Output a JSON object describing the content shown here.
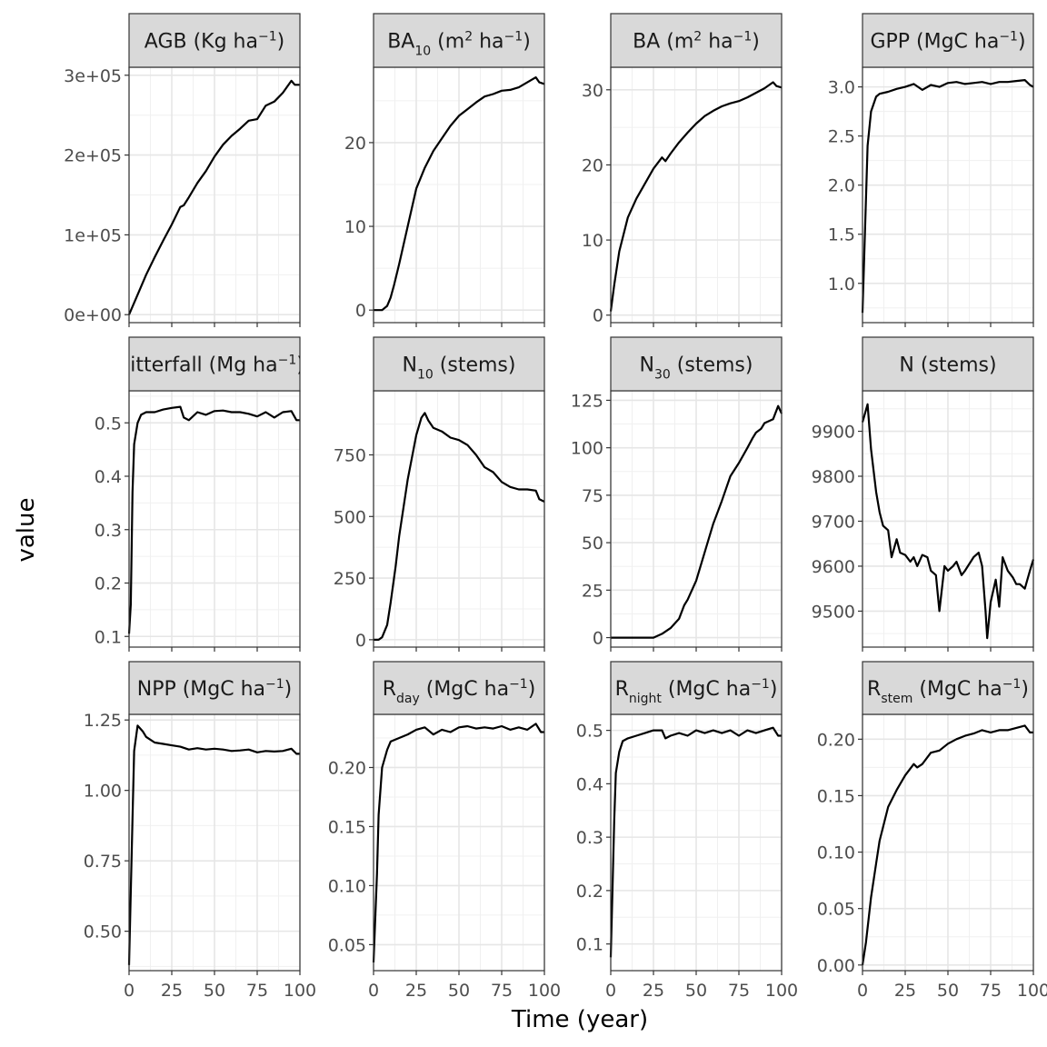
{
  "chart_data": {
    "type": "line",
    "xlabel": "Time (year)",
    "ylabel": "value",
    "xlim": [
      0,
      100
    ],
    "x_ticks": [
      0,
      25,
      50,
      75,
      100
    ],
    "grid": true,
    "line_color": "#000000",
    "strip_color": "#d9d9d9",
    "panels": [
      {
        "title": {
          "base": "AGB (Kg ha",
          "sup": "−1",
          "tail": ")"
        },
        "ylim": [
          -10000,
          310000
        ],
        "y_ticks": [
          0,
          100000,
          200000,
          300000
        ],
        "y_tick_labels": [
          "0e+00",
          "1e+05",
          "2e+05",
          "3e+05"
        ],
        "x": [
          0,
          5,
          10,
          15,
          20,
          25,
          30,
          32,
          35,
          40,
          45,
          50,
          55,
          60,
          65,
          70,
          75,
          80,
          85,
          90,
          95,
          97,
          100
        ],
        "y": [
          0,
          25000,
          50000,
          72000,
          93000,
          113000,
          135000,
          137000,
          147000,
          165000,
          180000,
          198000,
          213000,
          224000,
          233000,
          243000,
          245000,
          262000,
          267000,
          278000,
          293000,
          288000,
          288000
        ]
      },
      {
        "title": {
          "base": "BA",
          "sub": "10",
          "mid": " (m",
          "sup": "2",
          "tail": " ha",
          "sup2": "−1",
          "tail2": ")"
        },
        "ylim": [
          -1.5,
          29
        ],
        "y_ticks": [
          0,
          10,
          20
        ],
        "y_tick_labels": [
          "0",
          "10",
          "20"
        ],
        "x": [
          0,
          5,
          8,
          10,
          12,
          15,
          20,
          25,
          30,
          35,
          40,
          45,
          50,
          55,
          60,
          65,
          70,
          75,
          80,
          85,
          90,
          95,
          97,
          100
        ],
        "y": [
          0,
          0,
          0.5,
          1.5,
          3,
          5.5,
          10,
          14.5,
          17,
          19,
          20.5,
          22,
          23.2,
          24,
          24.8,
          25.5,
          25.8,
          26.2,
          26.3,
          26.6,
          27.2,
          27.8,
          27.2,
          27
        ]
      },
      {
        "title": {
          "base": "BA (m",
          "sup": "2",
          "tail": " ha",
          "sup2": "−1",
          "tail2": ")"
        },
        "ylim": [
          -1,
          33
        ],
        "y_ticks": [
          0,
          10,
          20,
          30
        ],
        "y_tick_labels": [
          "0",
          "10",
          "20",
          "30"
        ],
        "x": [
          0,
          2,
          5,
          10,
          15,
          20,
          25,
          30,
          32,
          35,
          40,
          45,
          50,
          55,
          60,
          65,
          70,
          75,
          80,
          85,
          90,
          95,
          97,
          100
        ],
        "y": [
          0.5,
          4,
          8.5,
          13,
          15.5,
          17.5,
          19.5,
          21,
          20.5,
          21.5,
          23,
          24.3,
          25.5,
          26.5,
          27.2,
          27.8,
          28.2,
          28.5,
          29,
          29.6,
          30.2,
          31,
          30.5,
          30.3
        ]
      },
      {
        "title": {
          "base": "GPP (MgC ha",
          "sup": "−1",
          "tail": ")"
        },
        "ylim": [
          0.6,
          3.2
        ],
        "y_ticks": [
          1.0,
          1.5,
          2.0,
          2.5,
          3.0
        ],
        "y_tick_labels": [
          "1.0",
          "1.5",
          "2.0",
          "2.5",
          "3.0"
        ],
        "x": [
          0,
          3,
          5,
          8,
          10,
          15,
          20,
          25,
          30,
          35,
          40,
          45,
          50,
          55,
          60,
          65,
          70,
          75,
          80,
          85,
          90,
          95,
          98,
          100
        ],
        "y": [
          0.7,
          2.4,
          2.75,
          2.9,
          2.93,
          2.95,
          2.98,
          3.0,
          3.03,
          2.97,
          3.02,
          3.0,
          3.04,
          3.05,
          3.03,
          3.04,
          3.05,
          3.03,
          3.05,
          3.05,
          3.06,
          3.07,
          3.02,
          3.0
        ]
      },
      {
        "title": {
          "base": "litterfall (Mg ha",
          "sup": "−1",
          "tail": ")"
        },
        "ylim": [
          0.08,
          0.56
        ],
        "y_ticks": [
          0.1,
          0.2,
          0.3,
          0.4,
          0.5
        ],
        "y_tick_labels": [
          "0.1",
          "0.2",
          "0.3",
          "0.4",
          "0.5"
        ],
        "x": [
          0,
          1,
          2,
          3,
          5,
          7,
          10,
          15,
          20,
          25,
          30,
          32,
          35,
          40,
          45,
          50,
          55,
          60,
          65,
          70,
          75,
          80,
          85,
          90,
          95,
          98,
          100
        ],
        "y": [
          0.105,
          0.16,
          0.37,
          0.46,
          0.5,
          0.515,
          0.52,
          0.52,
          0.525,
          0.528,
          0.53,
          0.51,
          0.505,
          0.52,
          0.515,
          0.522,
          0.523,
          0.52,
          0.52,
          0.517,
          0.512,
          0.52,
          0.51,
          0.52,
          0.522,
          0.505,
          0.505
        ]
      },
      {
        "title": {
          "base": "N",
          "sub": "10",
          "tail": " (stems)"
        },
        "ylim": [
          -30,
          1010
        ],
        "y_ticks": [
          0,
          250,
          500,
          750
        ],
        "y_tick_labels": [
          "0",
          "250",
          "500",
          "750"
        ],
        "x": [
          0,
          3,
          5,
          8,
          10,
          13,
          15,
          20,
          25,
          28,
          30,
          32,
          35,
          40,
          45,
          50,
          55,
          60,
          65,
          70,
          75,
          80,
          85,
          90,
          95,
          97,
          100
        ],
        "y": [
          0,
          0,
          10,
          60,
          150,
          300,
          420,
          650,
          830,
          900,
          920,
          890,
          860,
          845,
          820,
          810,
          790,
          750,
          700,
          680,
          640,
          620,
          610,
          610,
          605,
          570,
          560
        ]
      },
      {
        "title": {
          "base": "N",
          "sub": "30",
          "tail": " (stems)"
        },
        "ylim": [
          -5,
          130
        ],
        "y_ticks": [
          0,
          25,
          50,
          75,
          100,
          125
        ],
        "y_tick_labels": [
          "0",
          "25",
          "50",
          "75",
          "100",
          "125"
        ],
        "x": [
          0,
          10,
          20,
          25,
          30,
          35,
          40,
          43,
          45,
          50,
          55,
          60,
          65,
          70,
          75,
          80,
          83,
          85,
          88,
          90,
          95,
          98,
          100
        ],
        "y": [
          0,
          0,
          0,
          0,
          2,
          5,
          10,
          17,
          20,
          30,
          45,
          60,
          72,
          85,
          92,
          100,
          105,
          108,
          110,
          113,
          115,
          122,
          118
        ]
      },
      {
        "title": {
          "base": "N (stems)"
        },
        "ylim": [
          9420,
          9990
        ],
        "y_ticks": [
          9500,
          9600,
          9700,
          9800,
          9900
        ],
        "y_tick_labels": [
          "9500",
          "9600",
          "9700",
          "9800",
          "9900"
        ],
        "x": [
          0,
          3,
          5,
          8,
          10,
          12,
          15,
          17,
          20,
          22,
          25,
          28,
          30,
          32,
          35,
          38,
          40,
          43,
          45,
          48,
          50,
          53,
          55,
          58,
          60,
          65,
          68,
          70,
          72,
          73,
          75,
          78,
          80,
          82,
          85,
          88,
          90,
          92,
          95,
          98,
          100
        ],
        "y": [
          9920,
          9960,
          9860,
          9765,
          9720,
          9690,
          9680,
          9620,
          9660,
          9630,
          9625,
          9610,
          9620,
          9600,
          9625,
          9620,
          9590,
          9580,
          9500,
          9600,
          9590,
          9600,
          9610,
          9580,
          9590,
          9620,
          9630,
          9600,
          9500,
          9440,
          9520,
          9570,
          9510,
          9620,
          9590,
          9575,
          9560,
          9560,
          9550,
          9590,
          9615
        ]
      },
      {
        "title": {
          "base": "NPP (MgC ha",
          "sup": "−1",
          "tail": ")"
        },
        "ylim": [
          0.36,
          1.27
        ],
        "y_ticks": [
          0.5,
          0.75,
          1.0,
          1.25
        ],
        "y_tick_labels": [
          "0.50",
          "0.75",
          "1.00",
          "1.25"
        ],
        "x": [
          0,
          2,
          3,
          5,
          8,
          10,
          15,
          20,
          25,
          30,
          35,
          40,
          45,
          50,
          55,
          60,
          65,
          70,
          75,
          80,
          85,
          90,
          95,
          98,
          100
        ],
        "y": [
          0.38,
          0.9,
          1.14,
          1.23,
          1.21,
          1.19,
          1.17,
          1.165,
          1.16,
          1.155,
          1.145,
          1.15,
          1.145,
          1.148,
          1.145,
          1.14,
          1.142,
          1.145,
          1.135,
          1.14,
          1.138,
          1.14,
          1.148,
          1.13,
          1.13
        ]
      },
      {
        "title": {
          "base": "R",
          "sub": "day",
          "tail": " (MgC ha",
          "sup": "−1",
          "tail2": ")"
        },
        "ylim": [
          0.028,
          0.245
        ],
        "y_ticks": [
          0.05,
          0.1,
          0.15,
          0.2
        ],
        "y_tick_labels": [
          "0.05",
          "0.10",
          "0.15",
          "0.20"
        ],
        "x": [
          0,
          2,
          3,
          5,
          8,
          10,
          15,
          20,
          25,
          30,
          35,
          40,
          45,
          50,
          55,
          60,
          65,
          70,
          75,
          80,
          85,
          90,
          95,
          98,
          100
        ],
        "y": [
          0.035,
          0.11,
          0.16,
          0.2,
          0.215,
          0.222,
          0.225,
          0.228,
          0.232,
          0.234,
          0.228,
          0.232,
          0.23,
          0.234,
          0.235,
          0.233,
          0.234,
          0.233,
          0.235,
          0.232,
          0.234,
          0.232,
          0.237,
          0.23,
          0.23
        ]
      },
      {
        "title": {
          "base": "R",
          "sub": "night",
          "tail": " (MgC ha",
          "sup": "−1",
          "tail2": ")"
        },
        "ylim": [
          0.05,
          0.53
        ],
        "y_ticks": [
          0.1,
          0.2,
          0.3,
          0.4,
          0.5
        ],
        "y_tick_labels": [
          "0.1",
          "0.2",
          "0.3",
          "0.4",
          "0.5"
        ],
        "x": [
          0,
          1,
          2,
          3,
          5,
          7,
          10,
          15,
          20,
          25,
          30,
          32,
          35,
          40,
          45,
          50,
          55,
          60,
          65,
          70,
          75,
          80,
          85,
          90,
          95,
          98,
          100
        ],
        "y": [
          0.075,
          0.2,
          0.33,
          0.42,
          0.46,
          0.48,
          0.485,
          0.49,
          0.495,
          0.5,
          0.5,
          0.485,
          0.49,
          0.495,
          0.49,
          0.5,
          0.495,
          0.5,
          0.495,
          0.5,
          0.49,
          0.5,
          0.495,
          0.5,
          0.505,
          0.49,
          0.49
        ]
      },
      {
        "title": {
          "base": "R",
          "sub": "stem",
          "tail": " (MgC ha",
          "sup": "−1",
          "tail2": ")"
        },
        "ylim": [
          -0.005,
          0.222
        ],
        "y_ticks": [
          0.0,
          0.05,
          0.1,
          0.15,
          0.2
        ],
        "y_tick_labels": [
          "0.00",
          "0.05",
          "0.10",
          "0.15",
          "0.20"
        ],
        "x": [
          0,
          2,
          5,
          8,
          10,
          15,
          20,
          25,
          30,
          32,
          35,
          40,
          45,
          50,
          55,
          60,
          65,
          70,
          75,
          80,
          85,
          90,
          95,
          98,
          100
        ],
        "y": [
          0,
          0.02,
          0.06,
          0.09,
          0.11,
          0.14,
          0.155,
          0.168,
          0.178,
          0.175,
          0.178,
          0.188,
          0.19,
          0.196,
          0.2,
          0.203,
          0.205,
          0.208,
          0.206,
          0.208,
          0.208,
          0.21,
          0.212,
          0.206,
          0.206
        ]
      }
    ]
  }
}
